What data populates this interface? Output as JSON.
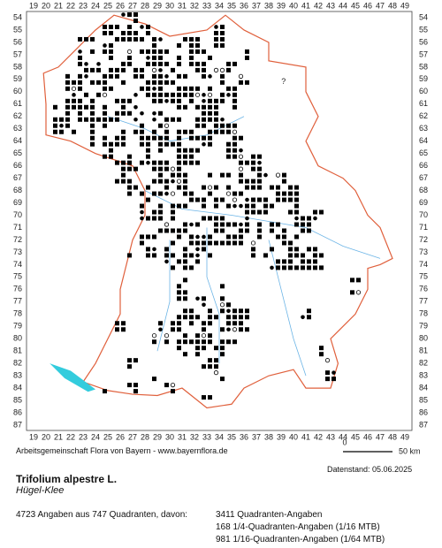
{
  "map": {
    "x_labels": [
      19,
      20,
      21,
      22,
      23,
      24,
      25,
      26,
      27,
      28,
      29,
      30,
      31,
      32,
      33,
      34,
      35,
      36,
      37,
      38,
      39,
      40,
      41,
      42,
      43,
      44,
      45,
      46,
      47,
      48,
      49
    ],
    "y_labels": [
      54,
      55,
      56,
      57,
      58,
      59,
      60,
      61,
      62,
      63,
      64,
      65,
      66,
      67,
      68,
      69,
      70,
      71,
      72,
      73,
      74,
      75,
      76,
      77,
      78,
      79,
      80,
      81,
      82,
      83,
      84,
      85,
      86,
      87
    ],
    "unknown_marker": "?",
    "scale_start": "0",
    "scale_end": "50 km"
  },
  "footer": {
    "credit": "Arbeitsgemeinschaft Flora von Bayern - www.bayernflora.de",
    "date": "Datenstand: 05.06.2025",
    "species": "Trifolium alpestre L.",
    "common_name": "Hügel-Klee",
    "summary": "4723 Angaben aus 747 Quadranten, davon:",
    "counts": [
      "3411 Quadranten-Angaben",
      "168 1/4-Quadranten-Angaben (1/16 MTB)",
      "981 1/16-Quadranten-Angaben (1/64 MTB)"
    ]
  }
}
